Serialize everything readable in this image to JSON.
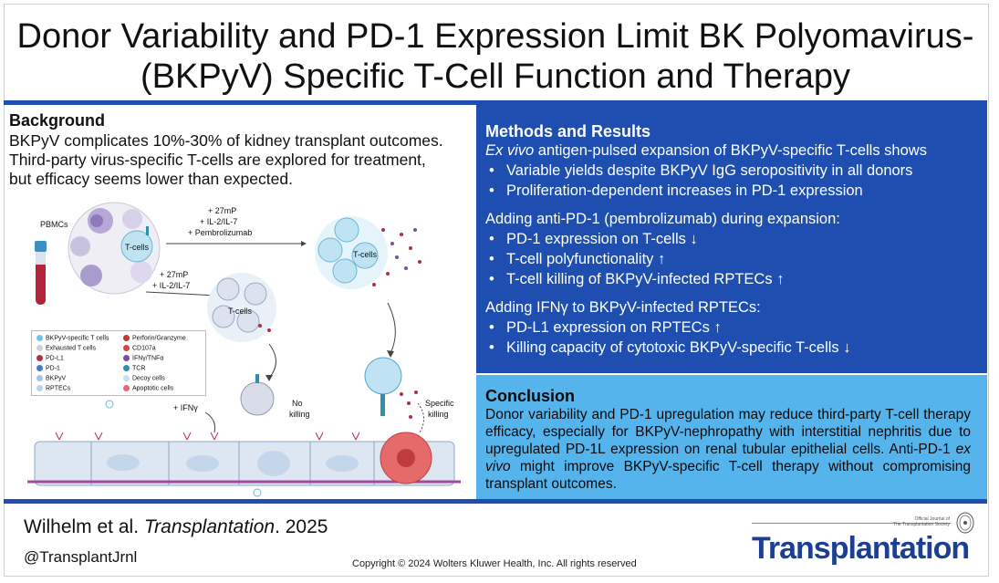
{
  "title": {
    "line1": "Donor Variability and PD-1 Expression Limit BK Polyomavirus-",
    "line2": "(BKPyV) Specific T-Cell Function and Therapy"
  },
  "background": {
    "heading": "Background",
    "lines": [
      "BKPyV complicates 10%-30% of kidney transplant outcomes.",
      "Third-party virus-specific T-cells are explored for treatment,",
      "but efficacy seems lower than expected."
    ]
  },
  "diagram": {
    "pbmcs": "PBMCs",
    "tcells": "T-cells",
    "arrow1": [
      "+ 27mP",
      "+ IL-2/IL-7",
      "+ Pembrolizumab"
    ],
    "arrow2": [
      "+ 27mP",
      "+ IL-2/IL-7"
    ],
    "ifng": "+ IFNγ",
    "no_killing": [
      "No",
      "killing"
    ],
    "specific_killing": [
      "Specific",
      "killing"
    ],
    "legend": [
      {
        "label": "BKPyV-specific T cells",
        "color": "#6ec6e8"
      },
      {
        "label": "Perforin/Granzyme",
        "color": "#c0392b"
      },
      {
        "label": "Exhausted T cells",
        "color": "#cfcfd8"
      },
      {
        "label": "CD107a",
        "color": "#d64545"
      },
      {
        "label": "PD-L1",
        "color": "#b0304a"
      },
      {
        "label": "IFNγ/TNFα",
        "color": "#7a4fa0"
      },
      {
        "label": "PD-1",
        "color": "#4a78c0"
      },
      {
        "label": "TCR",
        "color": "#2f8fb0"
      },
      {
        "label": "BKPyV",
        "color": "#9fc8e8"
      },
      {
        "label": "Decoy cells",
        "color": "#c7dff0"
      },
      {
        "label": "RPTECs",
        "color": "#bcd2ea"
      },
      {
        "label": "Apoptotic cells",
        "color": "#e56a6a"
      }
    ]
  },
  "methods": {
    "heading": "Methods and Results",
    "intro_em": "Ex vivo",
    "intro_rest": " antigen-pulsed expansion of BKPyV-specific T-cells shows",
    "bullets1": [
      "Variable yields despite BKPyV IgG seropositivity in all donors",
      "Proliferation-dependent increases in PD-1 expression"
    ],
    "sub2": "Adding anti-PD-1 (pembrolizumab) during expansion:",
    "bullets2": [
      {
        "text": "PD-1 expression on T-cells",
        "arrow": "↓"
      },
      {
        "text": "T-cell polyfunctionality",
        "arrow": "↑"
      },
      {
        "text": "T-cell killing of BKPyV-infected RPTECs",
        "arrow": "↑"
      }
    ],
    "sub3": "Adding IFNγ to BKPyV-infected RPTECs:",
    "bullets3": [
      {
        "text": "PD-L1 expression on RPTECs",
        "arrow": "↑"
      },
      {
        "text": "Killing capacity of cytotoxic BKPyV-specific T-cells",
        "arrow": "↓"
      }
    ]
  },
  "conclusion": {
    "heading": "Conclusion",
    "p1": "Donor variability and PD-1 upregulation may reduce third-party T-cell therapy efficacy, especially for BKPyV-nephropathy with interstitial nephritis due to upregulated PD-1L expression on renal tubular epithelial cells. Anti-PD-1 ",
    "p_em": "ex vivo",
    "p2": " might improve BKPyV-specific T-cell therapy without compromising transplant outcomes."
  },
  "footer": {
    "authors": "Wilhelm et al. ",
    "journal_em": "Transplantation",
    "year": ". 2025",
    "handle": "@TransplantJrnl",
    "copyright": "Copyright © 2024  Wolters Kluwer Health, Inc. All rights reserved",
    "brand": "Transplantation",
    "journal_note": [
      "Official Journal of",
      "The Transplantation Society"
    ]
  },
  "colors": {
    "accent_blue": "#1e4fb0",
    "conclusion_bg": "#56b4ec",
    "brand": "#1c3f94"
  }
}
